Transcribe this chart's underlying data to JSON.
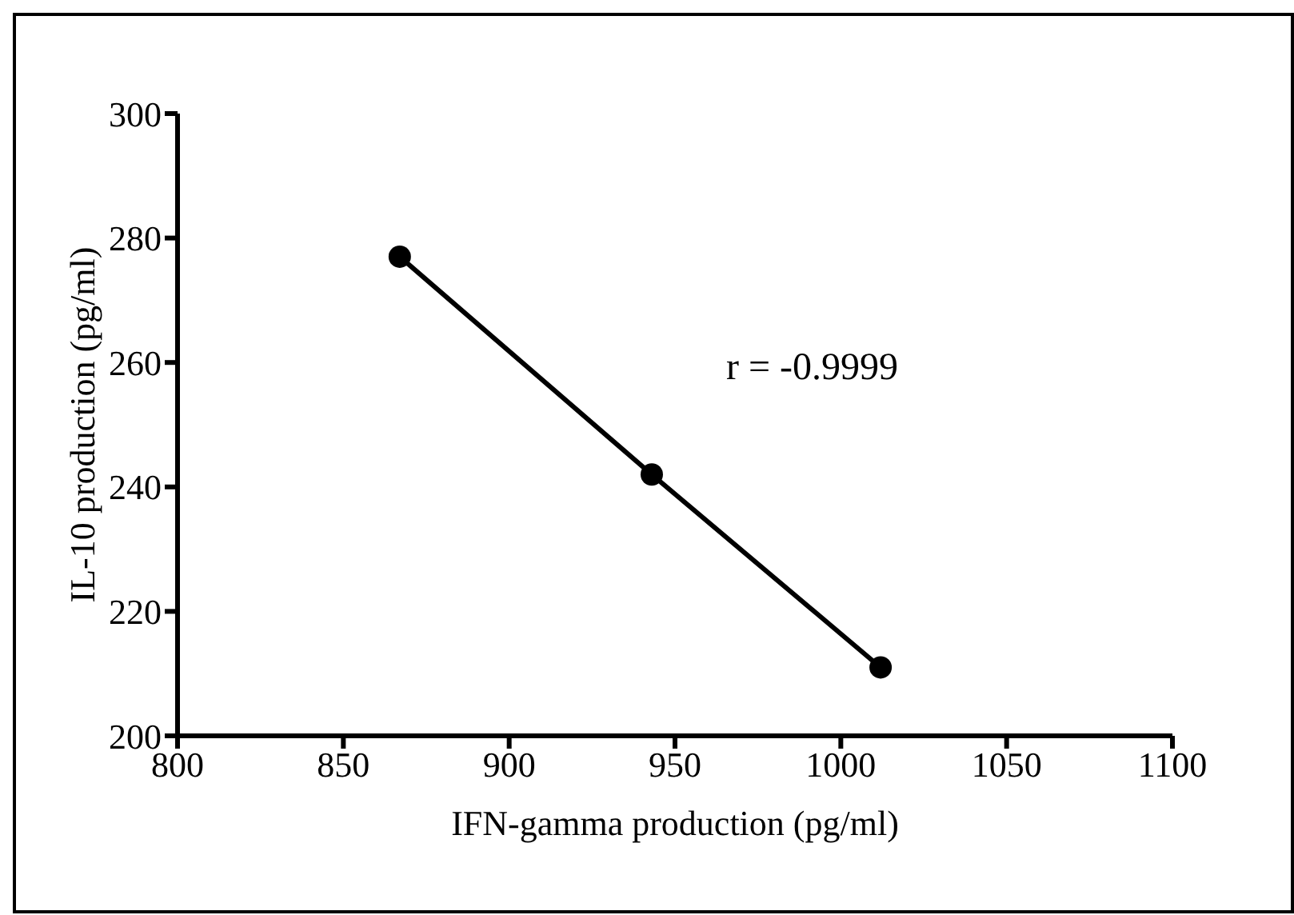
{
  "chart_data": {
    "type": "line",
    "xlabel": "IFN-gamma production (pg/ml)",
    "ylabel": "IL-10 production (pg/ml)",
    "annotations": [
      "r = -0.9999"
    ],
    "series": [
      {
        "color": "#000000",
        "x": [
          867,
          943,
          1012
        ],
        "values": [
          277,
          242,
          211
        ]
      }
    ],
    "xlim": [
      800,
      1100
    ],
    "xticks": [
      800,
      850,
      900,
      950,
      1000,
      1050,
      1100
    ],
    "ylim": [
      200,
      300
    ],
    "yticks": [
      200,
      220,
      240,
      260,
      280,
      300
    ],
    "marker": "circle",
    "line_style": "solid",
    "grid": false,
    "legend": false
  }
}
